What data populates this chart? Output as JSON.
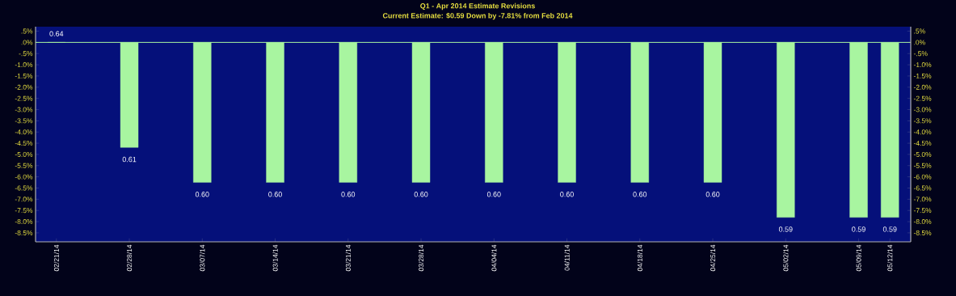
{
  "chart_data": {
    "type": "bar",
    "title": "Q1 - Apr 2014  Estimate Revisions",
    "subtitle": "Current Estimate: $0.59 Down by -7.81% from Feb 2014",
    "x": [
      "2014-02-21",
      "2014-02-28",
      "2014-03-07",
      "2014-03-14",
      "2014-03-21",
      "2014-03-28",
      "2014-04-04",
      "2014-04-11",
      "2014-04-18",
      "2014-04-25",
      "2014-05-02",
      "2014-05-09",
      "2014-05-12"
    ],
    "values": [
      0,
      -4.69,
      -6.25,
      -6.25,
      -6.25,
      -6.25,
      -6.25,
      -6.25,
      -6.25,
      -6.25,
      -7.81,
      -7.81,
      -7.81
    ],
    "annotations": [
      {
        "text": "0.64",
        "x": "2014-02-21",
        "y": 0
      },
      {
        "text": "0.61",
        "x": "2014-02-28",
        "y": -4.69
      },
      {
        "text": "0.60",
        "x": "2014-03-07",
        "y": -6.25
      },
      {
        "text": "0.60",
        "x": "2014-03-14",
        "y": -6.25
      },
      {
        "text": "0.60",
        "x": "2014-03-21",
        "y": -6.25
      },
      {
        "text": "0.60",
        "x": "2014-03-28",
        "y": -6.25
      },
      {
        "text": "0.60",
        "x": "2014-04-04",
        "y": -6.25
      },
      {
        "text": "0.60",
        "x": "2014-04-11",
        "y": -6.25
      },
      {
        "text": "0.60",
        "x": "2014-04-18",
        "y": -6.25
      },
      {
        "text": "0.60",
        "x": "2014-04-25",
        "y": -6.25
      },
      {
        "text": "0.59",
        "x": "2014-05-02",
        "y": -7.81
      },
      {
        "text": "0.59",
        "x": "2014-05-09",
        "y": -7.81
      },
      {
        "text": "0.59",
        "x": "2014-05-12",
        "y": -7.81
      }
    ],
    "color": "#a8f5a0",
    "xlim": [
      "2014-02-19",
      "2014-05-14"
    ],
    "xticks": [
      {
        "value": "2014-02-21",
        "label": "02/21/14"
      },
      {
        "value": "2014-02-28",
        "label": "02/28/14"
      },
      {
        "value": "2014-03-07",
        "label": "03/07/14"
      },
      {
        "value": "2014-03-14",
        "label": "03/14/14"
      },
      {
        "value": "2014-03-21",
        "label": "03/21/14"
      },
      {
        "value": "2014-03-28",
        "label": "03/28/14"
      },
      {
        "value": "2014-04-04",
        "label": "04/04/14"
      },
      {
        "value": "2014-04-11",
        "label": "04/11/14"
      },
      {
        "value": "2014-04-18",
        "label": "04/18/14"
      },
      {
        "value": "2014-04-25",
        "label": "04/25/14"
      },
      {
        "value": "2014-05-02",
        "label": "05/02/14"
      },
      {
        "value": "2014-05-09",
        "label": "05/09/14"
      },
      {
        "value": "2014-05-12",
        "label": "05/12/14"
      }
    ],
    "ylim": [
      -8.9,
      0.7
    ],
    "yticks": [
      {
        "value": 0.5,
        "label": ".5%"
      },
      {
        "value": 0,
        "label": ".0%"
      },
      {
        "value": -0.5,
        "label": "-.5%"
      },
      {
        "value": -1,
        "label": "-1.0%"
      },
      {
        "value": -1.5,
        "label": "-1.5%"
      },
      {
        "value": -2,
        "label": "-2.0%"
      },
      {
        "value": -2.5,
        "label": "-2.5%"
      },
      {
        "value": -3,
        "label": "-3.0%"
      },
      {
        "value": -3.5,
        "label": "-3.5%"
      },
      {
        "value": -4,
        "label": "-4.0%"
      },
      {
        "value": -4.5,
        "label": "-4.5%"
      },
      {
        "value": -5,
        "label": "-5.0%"
      },
      {
        "value": -5.5,
        "label": "-5.5%"
      },
      {
        "value": -6,
        "label": "-6.0%"
      },
      {
        "value": -6.5,
        "label": "-6.5%"
      },
      {
        "value": -7,
        "label": "-7.0%"
      },
      {
        "value": -7.5,
        "label": "-7.5%"
      },
      {
        "value": -8,
        "label": "-8.0%"
      },
      {
        "value": -8.5,
        "label": "-8.5%"
      }
    ],
    "y2lim": [
      -8.9,
      0.7
    ],
    "y2ticks": [
      {
        "value": 0.5,
        "label": ".5%"
      },
      {
        "value": 0,
        "label": ".0%"
      },
      {
        "value": -0.5,
        "label": "-.5%"
      },
      {
        "value": -1,
        "label": "-1.0%"
      },
      {
        "value": -1.5,
        "label": "-1.5%"
      },
      {
        "value": -2,
        "label": "-2.0%"
      },
      {
        "value": -2.5,
        "label": "-2.5%"
      },
      {
        "value": -3,
        "label": "-3.0%"
      },
      {
        "value": -3.5,
        "label": "-3.5%"
      },
      {
        "value": -4,
        "label": "-4.0%"
      },
      {
        "value": -4.5,
        "label": "-4.5%"
      },
      {
        "value": -5,
        "label": "-5.0%"
      },
      {
        "value": -5.5,
        "label": "-5.5%"
      },
      {
        "value": -6,
        "label": "-6.0%"
      },
      {
        "value": -6.5,
        "label": "-6.5%"
      },
      {
        "value": -7,
        "label": "-7.0%"
      },
      {
        "value": -7.5,
        "label": "-7.5%"
      },
      {
        "value": -8,
        "label": "-8.0%"
      },
      {
        "value": -8.5,
        "label": "-8.5%"
      }
    ],
    "ref_lines": [
      {
        "axis": "y",
        "value": 0,
        "color": "#a8f5a0"
      }
    ],
    "grid": false
  }
}
